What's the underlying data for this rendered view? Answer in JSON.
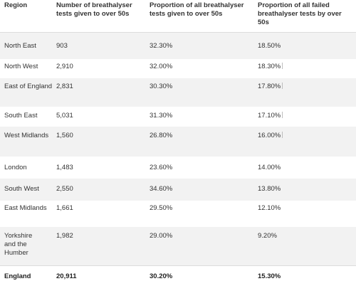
{
  "columns": {
    "region": "Region",
    "tests": "Number of breathalyser tests given to over 50s",
    "proportion": "Proportion of all breathalyser tests given to over 50s",
    "failed": "Proportion of all failed breathalyser tests by over 50s"
  },
  "rows": [
    {
      "region": "North East",
      "tests": "903",
      "proportion": "32.30%",
      "failed": "18.50%"
    },
    {
      "region": "North West",
      "tests": "2,910",
      "proportion": "32.00%",
      "failed": "18.30%"
    },
    {
      "region": "East of England",
      "tests": "2,831",
      "proportion": "30.30%",
      "failed": "17.80%"
    },
    {
      "region": "South East",
      "tests": "5,031",
      "proportion": "31.30%",
      "failed": "17.10%"
    },
    {
      "region": "West Midlands",
      "tests": "1,560",
      "proportion": "26.80%",
      "failed": "16.00%"
    },
    {
      "region": "London",
      "tests": "1,483",
      "proportion": "23.60%",
      "failed": "14.00%"
    },
    {
      "region": "South West",
      "tests": "2,550",
      "proportion": "34.60%",
      "failed": "13.80%"
    },
    {
      "region": "East Midlands",
      "tests": "1,661",
      "proportion": "29.50%",
      "failed": "12.10%"
    },
    {
      "region": "Yorkshire and the Humber",
      "tests": "1,982",
      "proportion": "29.00%",
      "failed": "9.20%"
    }
  ],
  "total": {
    "region": "England",
    "tests": "20,911",
    "proportion": "30.20%",
    "failed": "15.30%"
  },
  "colors": {
    "shaded_row": "#f2f2f2",
    "text": "#333333",
    "divider": "#dcdcdc"
  }
}
